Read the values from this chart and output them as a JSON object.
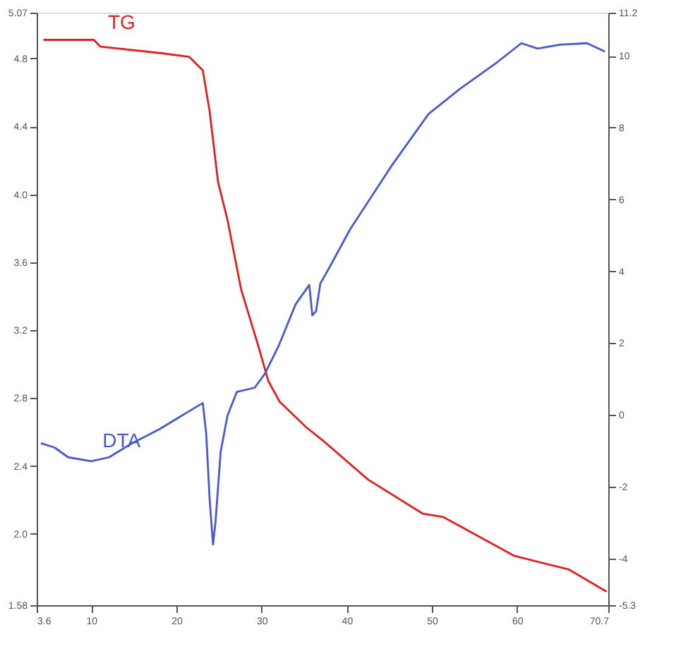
{
  "chart_data": {
    "type": "line",
    "xlim": [
      3.6,
      70.7
    ],
    "xticks": [
      3.6,
      10,
      20,
      30,
      40,
      50,
      60,
      70.7
    ],
    "ylim": [
      1.58,
      5.07
    ],
    "yticks": [
      1.58,
      {
        "value": 2,
        "label": "2.0"
      },
      2.4,
      2.8,
      3.2,
      3.6,
      {
        "value": 4,
        "label": "4.0"
      },
      4.4,
      4.8,
      5.07
    ],
    "y2lim": [
      -5.3,
      11.2
    ],
    "y2ticks": [
      -5.3,
      -4,
      -2,
      0,
      2,
      4,
      6,
      8,
      10,
      11.2
    ],
    "grid": false,
    "legend": false,
    "line_style": "solid",
    "marker": "none",
    "series": [
      {
        "name": "TG",
        "color": "#e02020",
        "x": [
          4.4,
          10.3,
          11.1,
          18.5,
          21.5,
          23.1,
          23.9,
          24.9,
          26.0,
          27.6,
          29.6,
          30.8,
          32.1,
          35.2,
          37.2,
          42.5,
          48.9,
          51.3,
          59.7,
          66.1,
          70.5
        ],
        "values": [
          4.91,
          4.91,
          4.87,
          4.83,
          4.81,
          4.73,
          4.49,
          4.07,
          3.85,
          3.44,
          3.11,
          2.9,
          2.78,
          2.63,
          2.55,
          2.32,
          2.12,
          2.1,
          1.87,
          1.79,
          1.66
        ]
      },
      {
        "name": "DTA",
        "color": "#4a5ac8",
        "axis": "y2",
        "x": [
          4.1,
          5.7,
          7.3,
          10.0,
          12.1,
          14.8,
          18.0,
          21.2,
          23.1,
          23.5,
          23.9,
          24.3,
          24.6,
          25.2,
          26.0,
          27.1,
          29.2,
          30.4,
          32.0,
          34.0,
          35.6,
          35.96,
          36.4,
          36.9,
          38.0,
          40.4,
          45.3,
          49.6,
          53.3,
          57.6,
          60.5,
          62.4,
          65.0,
          68.2,
          70.3
        ],
        "values": [
          -0.79,
          -0.91,
          -1.18,
          -1.29,
          -1.18,
          -0.79,
          -0.4,
          0.06,
          0.33,
          -0.52,
          -2.34,
          -3.61,
          -2.96,
          -1.02,
          -0.02,
          0.64,
          0.76,
          1.15,
          1.92,
          3.08,
          3.62,
          2.77,
          2.89,
          3.66,
          4.12,
          5.17,
          6.95,
          8.38,
          9.08,
          9.81,
          10.35,
          10.2,
          10.31,
          10.35,
          10.12
        ]
      }
    ]
  }
}
